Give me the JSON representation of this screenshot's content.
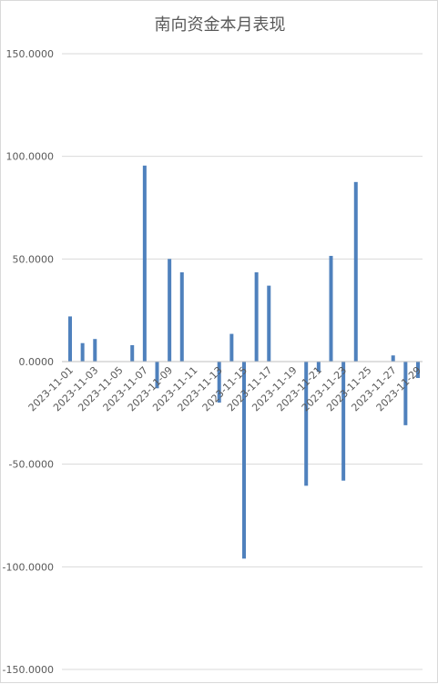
{
  "chart_data": {
    "type": "bar",
    "title": "南向资金本月表现",
    "xlabel": "",
    "ylabel": "",
    "ylim": [
      -150,
      150
    ],
    "yticks": [
      "150.0000",
      "100.0000",
      "50.0000",
      "0.0000",
      "-50.0000",
      "-100.0000",
      "-150.0000"
    ],
    "grid": true,
    "legend": "none",
    "bar_color": "#4f81bd",
    "categories": [
      "2023-11-01",
      "2023-11-02",
      "2023-11-03",
      "2023-11-04",
      "2023-11-05",
      "2023-11-06",
      "2023-11-07",
      "2023-11-08",
      "2023-11-09",
      "2023-11-10",
      "2023-11-11",
      "2023-11-12",
      "2023-11-13",
      "2023-11-14",
      "2023-11-15",
      "2023-11-16",
      "2023-11-17",
      "2023-11-18",
      "2023-11-19",
      "2023-11-20",
      "2023-11-21",
      "2023-11-22",
      "2023-11-23",
      "2023-11-24",
      "2023-11-25",
      "2023-11-26",
      "2023-11-27",
      "2023-11-28",
      "2023-11-29"
    ],
    "values": [
      22,
      9,
      11,
      0,
      0,
      8,
      95.5,
      -13,
      50,
      43.5,
      0,
      0,
      -20,
      13.5,
      -96,
      43.5,
      37,
      0,
      0,
      -60.5,
      -5,
      51.5,
      -58,
      87.5,
      0,
      0,
      3,
      -31,
      -8
    ],
    "tick_labels_shown": [
      "2023-11-01",
      "2023-11-03",
      "2023-11-05",
      "2023-11-07",
      "2023-11-09",
      "2023-11-11",
      "2023-11-13",
      "2023-11-15",
      "2023-11-17",
      "2023-11-19",
      "2023-11-21",
      "2023-11-23",
      "2023-11-25",
      "2023-11-27",
      "2023-11-29"
    ]
  }
}
